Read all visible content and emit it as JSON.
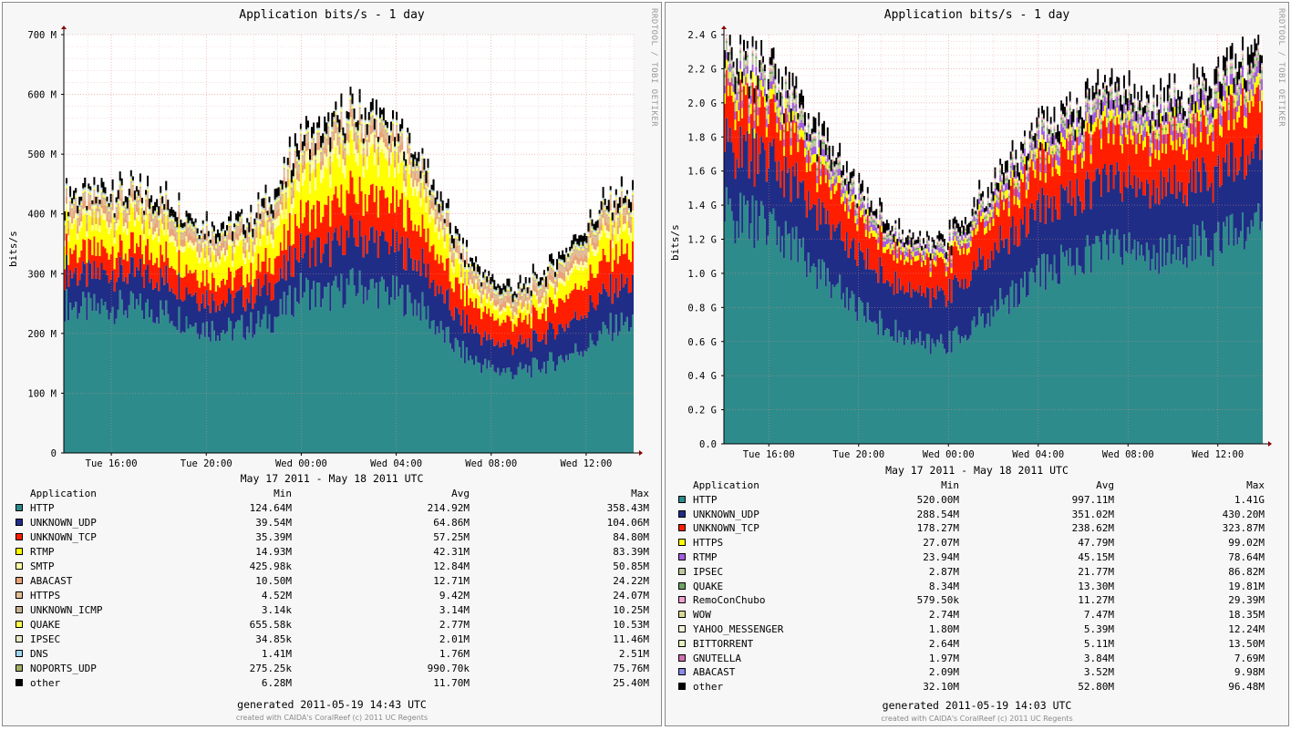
{
  "chart_data": [
    {
      "type": "area",
      "stacked": true,
      "title": "Application bits/s - 1 day",
      "side_label": "RRDTOOL / TOBI OETIKER",
      "ylabel": "bits/s",
      "xlabel": "May 17 2011 - May 18 2011 UTC",
      "ylim": [
        0,
        700000000
      ],
      "yticks": [
        "0",
        "100 M",
        "200 M",
        "300 M",
        "400 M",
        "500 M",
        "600 M",
        "700 M"
      ],
      "xticks": [
        "Tue 16:00",
        "Tue 20:00",
        "Wed 00:00",
        "Wed 04:00",
        "Wed 08:00",
        "Wed 12:00"
      ],
      "x_hours": [
        14.0,
        15.0,
        16.0,
        17.0,
        18.0,
        19.0,
        20.0,
        21.0,
        22.0,
        23.0,
        24.0,
        25.0,
        26.0,
        27.0,
        28.0,
        29.0,
        30.0,
        31.0,
        32.0,
        33.0,
        34.0,
        35.0,
        36.0,
        37.0,
        38.0
      ],
      "grid": true,
      "legend_header": {
        "name": "Application",
        "min": "Min",
        "avg": "Avg",
        "max": "Max"
      },
      "series": [
        {
          "name": "HTTP",
          "color": "#2e8b8b",
          "min": "124.64M",
          "avg": "214.92M",
          "max": "358.43M",
          "values": [
            250,
            240,
            245,
            242,
            238,
            225,
            210,
            205,
            215,
            230,
            275,
            260,
            280,
            275,
            265,
            245,
            195,
            160,
            140,
            135,
            145,
            160,
            180,
            210,
            220
          ]
        },
        {
          "name": "UNKNOWN_UDP",
          "color": "#1f2d86",
          "min": "39.54M",
          "avg": "64.86M",
          "max": "104.06M",
          "values": [
            55,
            55,
            58,
            56,
            55,
            53,
            50,
            48,
            50,
            55,
            70,
            78,
            85,
            82,
            80,
            70,
            62,
            50,
            45,
            44,
            48,
            55,
            60,
            65,
            62
          ]
        },
        {
          "name": "UNKNOWN_TCP",
          "color": "#ff1e00",
          "min": "35.39M",
          "avg": "57.25M",
          "max": "84.80M",
          "values": [
            38,
            38,
            40,
            40,
            40,
            38,
            36,
            36,
            38,
            45,
            60,
            65,
            70,
            72,
            70,
            62,
            52,
            45,
            40,
            38,
            40,
            45,
            50,
            55,
            52
          ]
        },
        {
          "name": "RTMP",
          "color": "#ffff00",
          "min": "14.93M",
          "avg": "42.31M",
          "max": "83.39M",
          "values": [
            40,
            42,
            45,
            44,
            42,
            40,
            38,
            40,
            42,
            50,
            60,
            62,
            65,
            65,
            60,
            55,
            40,
            25,
            18,
            16,
            20,
            28,
            35,
            40,
            38
          ]
        },
        {
          "name": "SMTP",
          "color": "#ffffa8",
          "min": "425.98k",
          "avg": "12.84M",
          "max": "50.85M",
          "values": [
            10,
            10,
            11,
            10,
            10,
            9,
            9,
            10,
            12,
            15,
            20,
            22,
            22,
            20,
            18,
            15,
            12,
            8,
            6,
            5,
            6,
            8,
            10,
            12,
            11
          ]
        },
        {
          "name": "ABACAST",
          "color": "#e9a37a",
          "min": "10.50M",
          "avg": "12.71M",
          "max": "24.22M",
          "values": [
            13,
            13,
            13,
            13,
            13,
            12,
            12,
            12,
            12,
            13,
            14,
            14,
            14,
            14,
            14,
            13,
            12,
            11,
            11,
            11,
            11,
            12,
            12,
            13,
            13
          ]
        },
        {
          "name": "HTTPS",
          "color": "#e0bd95",
          "min": "4.52M",
          "avg": "9.42M",
          "max": "24.07M",
          "values": [
            10,
            10,
            10,
            10,
            10,
            9,
            9,
            9,
            10,
            11,
            12,
            12,
            12,
            12,
            11,
            10,
            9,
            8,
            7,
            7,
            8,
            9,
            10,
            10,
            10
          ]
        },
        {
          "name": "UNKNOWN_ICMP",
          "color": "#c7b190",
          "min": "3.14k",
          "avg": "3.14M",
          "max": "10.25M",
          "values": [
            3,
            3,
            3,
            3,
            3,
            3,
            3,
            3,
            3,
            3,
            4,
            4,
            4,
            4,
            3,
            3,
            3,
            3,
            3,
            3,
            3,
            3,
            3,
            3,
            3
          ]
        },
        {
          "name": "QUAKE",
          "color": "#ffff4d",
          "min": "655.58k",
          "avg": "2.77M",
          "max": "10.53M",
          "values": [
            3,
            3,
            3,
            3,
            3,
            3,
            3,
            3,
            3,
            3,
            3,
            3,
            3,
            3,
            3,
            3,
            3,
            3,
            2,
            2,
            2,
            3,
            3,
            3,
            3
          ]
        },
        {
          "name": "IPSEC",
          "color": "#e8e8c8",
          "min": "34.85k",
          "avg": "2.01M",
          "max": "11.46M",
          "values": [
            2,
            2,
            2,
            2,
            2,
            2,
            2,
            2,
            2,
            2,
            2,
            2,
            2,
            2,
            2,
            2,
            2,
            2,
            2,
            2,
            2,
            2,
            2,
            2,
            2
          ]
        },
        {
          "name": "DNS",
          "color": "#9fd4ee",
          "min": "1.41M",
          "avg": "1.76M",
          "max": "2.51M",
          "values": [
            2,
            2,
            2,
            2,
            2,
            2,
            2,
            2,
            2,
            2,
            2,
            2,
            2,
            2,
            2,
            2,
            2,
            2,
            2,
            2,
            2,
            2,
            2,
            2,
            2
          ]
        },
        {
          "name": "NOPORTS_UDP",
          "color": "#a0ad66",
          "min": "275.25k",
          "avg": "990.70k",
          "max": "75.76M",
          "values": [
            1,
            1,
            1,
            1,
            1,
            1,
            1,
            1,
            1,
            1,
            1,
            1,
            1,
            1,
            1,
            1,
            1,
            1,
            1,
            1,
            1,
            1,
            1,
            1,
            1
          ]
        },
        {
          "name": "other",
          "color": "#000000",
          "min": "6.28M",
          "avg": "11.70M",
          "max": "25.40M",
          "values": [
            10,
            10,
            11,
            11,
            11,
            10,
            10,
            10,
            11,
            12,
            14,
            15,
            15,
            15,
            14,
            13,
            12,
            10,
            9,
            9,
            10,
            11,
            12,
            12,
            12
          ]
        }
      ],
      "generated": "generated 2011-05-19 14:43 UTC",
      "credit": "created with CAIDA's CoralReef (c) 2011 UC Regents"
    },
    {
      "type": "area",
      "stacked": true,
      "title": "Application bits/s - 1 day",
      "side_label": "RRDTOOL / TOBI OETIKER",
      "ylabel": "bits/s",
      "xlabel": "May 17 2011 - May 18 2011 UTC",
      "ylim": [
        0,
        2400000000
      ],
      "yticks": [
        "0.0",
        "0.2 G",
        "0.4 G",
        "0.6 G",
        "0.8 G",
        "1.0 G",
        "1.2 G",
        "1.4 G",
        "1.6 G",
        "1.8 G",
        "2.0 G",
        "2.2 G",
        "2.4 G"
      ],
      "xticks": [
        "Tue 16:00",
        "Tue 20:00",
        "Wed 00:00",
        "Wed 04:00",
        "Wed 08:00",
        "Wed 12:00"
      ],
      "x_hours": [
        14.0,
        15.0,
        16.0,
        17.0,
        18.0,
        19.0,
        20.0,
        21.0,
        22.0,
        23.0,
        24.0,
        25.0,
        26.0,
        27.0,
        28.0,
        29.0,
        30.0,
        31.0,
        32.0,
        33.0,
        34.0,
        35.0,
        36.0,
        37.0,
        38.0
      ],
      "grid": true,
      "legend_header": {
        "name": "Application",
        "min": "Min",
        "avg": "Avg",
        "max": "Max"
      },
      "series": [
        {
          "name": "HTTP",
          "color": "#2e8b8b",
          "min": "520.00M",
          "avg": "997.11M",
          "max": "1.41G",
          "values": [
            1350,
            1320,
            1270,
            1180,
            1040,
            920,
            800,
            700,
            620,
            580,
            600,
            680,
            790,
            900,
            1000,
            1060,
            1110,
            1160,
            1160,
            1110,
            1130,
            1160,
            1190,
            1240,
            1310
          ]
        },
        {
          "name": "UNKNOWN_UDP",
          "color": "#1f2d86",
          "min": "288.54M",
          "avg": "351.02M",
          "max": "430.20M",
          "values": [
            390,
            385,
            380,
            370,
            350,
            330,
            310,
            300,
            290,
            292,
            300,
            320,
            340,
            360,
            370,
            375,
            380,
            385,
            385,
            380,
            385,
            390,
            400,
            410,
            420
          ]
        },
        {
          "name": "UNKNOWN_TCP",
          "color": "#ff1e00",
          "min": "178.27M",
          "avg": "238.62M",
          "max": "323.87M",
          "values": [
            280,
            275,
            270,
            260,
            245,
            225,
            205,
            190,
            182,
            182,
            188,
            200,
            215,
            235,
            250,
            258,
            265,
            270,
            270,
            265,
            268,
            275,
            285,
            295,
            300
          ]
        },
        {
          "name": "HTTPS",
          "color": "#ffff00",
          "min": "27.07M",
          "avg": "47.79M",
          "max": "99.02M",
          "values": [
            60,
            60,
            58,
            55,
            50,
            45,
            40,
            35,
            30,
            28,
            30,
            35,
            42,
            48,
            52,
            55,
            57,
            58,
            58,
            56,
            57,
            60,
            62,
            65,
            66
          ]
        },
        {
          "name": "RTMP",
          "color": "#a35ce0",
          "min": "23.94M",
          "avg": "45.15M",
          "max": "78.64M",
          "values": [
            45,
            46,
            46,
            45,
            43,
            40,
            37,
            32,
            28,
            27,
            28,
            32,
            38,
            45,
            50,
            55,
            58,
            60,
            60,
            58,
            58,
            60,
            62,
            64,
            66
          ]
        },
        {
          "name": "IPSEC",
          "color": "#bcc8a0",
          "min": "2.87M",
          "avg": "21.77M",
          "max": "86.82M",
          "values": [
            50,
            48,
            45,
            40,
            32,
            25,
            18,
            12,
            8,
            6,
            8,
            12,
            16,
            20,
            22,
            24,
            25,
            26,
            26,
            25,
            25,
            26,
            28,
            32,
            35
          ]
        },
        {
          "name": "QUAKE",
          "color": "#6ea362",
          "min": "8.34M",
          "avg": "13.30M",
          "max": "19.81M",
          "values": [
            15,
            15,
            15,
            15,
            14,
            13,
            12,
            11,
            10,
            10,
            10,
            11,
            12,
            13,
            14,
            14,
            14,
            15,
            15,
            14,
            14,
            15,
            15,
            16,
            16
          ]
        },
        {
          "name": "RemoConChubo",
          "color": "#f0a0d0",
          "min": "579.50k",
          "avg": "11.27M",
          "max": "29.39M",
          "values": [
            12,
            12,
            12,
            12,
            11,
            10,
            9,
            8,
            7,
            7,
            7,
            8,
            10,
            12,
            13,
            13,
            14,
            14,
            14,
            13,
            13,
            14,
            14,
            15,
            15
          ]
        },
        {
          "name": "WOW",
          "color": "#d8d890",
          "min": "2.74M",
          "avg": "7.47M",
          "max": "18.35M",
          "values": [
            8,
            8,
            8,
            8,
            8,
            7,
            7,
            6,
            5,
            5,
            5,
            6,
            7,
            8,
            8,
            8,
            8,
            9,
            9,
            8,
            8,
            8,
            8,
            9,
            9
          ]
        },
        {
          "name": "YAHOO_MESSENGER",
          "color": "#f0f0d8",
          "min": "1.80M",
          "avg": "5.39M",
          "max": "12.24M",
          "values": [
            6,
            6,
            6,
            6,
            6,
            5,
            5,
            4,
            4,
            4,
            4,
            4,
            5,
            5,
            6,
            6,
            6,
            6,
            6,
            6,
            6,
            6,
            6,
            6,
            6
          ]
        },
        {
          "name": "BITTORRENT",
          "color": "#e2efc0",
          "min": "2.64M",
          "avg": "5.11M",
          "max": "13.50M",
          "values": [
            5,
            5,
            5,
            5,
            5,
            5,
            5,
            4,
            4,
            4,
            4,
            4,
            5,
            5,
            5,
            5,
            5,
            5,
            5,
            5,
            5,
            5,
            6,
            6,
            6
          ]
        },
        {
          "name": "GNUTELLA",
          "color": "#d070b0",
          "min": "1.97M",
          "avg": "3.84M",
          "max": "7.69M",
          "values": [
            4,
            4,
            4,
            4,
            4,
            4,
            4,
            3,
            3,
            3,
            3,
            3,
            4,
            4,
            4,
            4,
            4,
            4,
            4,
            4,
            4,
            4,
            4,
            4,
            4
          ]
        },
        {
          "name": "ABACAST",
          "color": "#8a8ae8",
          "min": "2.09M",
          "avg": "3.52M",
          "max": "9.98M",
          "values": [
            4,
            4,
            4,
            4,
            4,
            3,
            3,
            3,
            3,
            3,
            3,
            3,
            3,
            4,
            4,
            4,
            4,
            4,
            4,
            4,
            4,
            4,
            4,
            4,
            4
          ]
        },
        {
          "name": "other",
          "color": "#000000",
          "min": "32.10M",
          "avg": "52.80M",
          "max": "96.48M",
          "values": [
            65,
            64,
            62,
            60,
            56,
            50,
            45,
            40,
            36,
            35,
            36,
            40,
            46,
            52,
            56,
            58,
            60,
            62,
            62,
            60,
            61,
            63,
            66,
            70,
            75
          ]
        }
      ],
      "generated": "generated 2011-05-19 14:03 UTC",
      "credit": "created with CAIDA's CoralReef (c) 2011 UC Regents"
    }
  ]
}
